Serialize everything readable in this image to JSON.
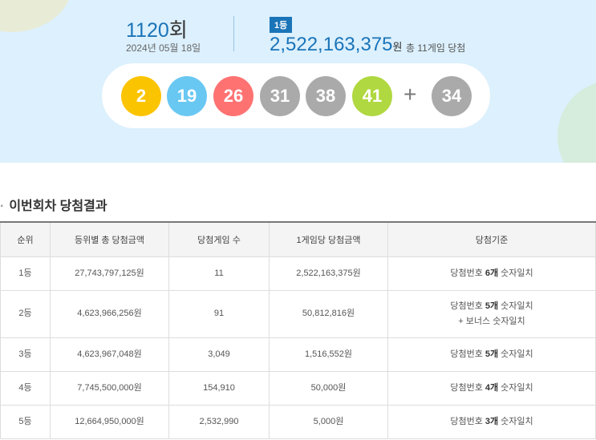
{
  "draw": {
    "round": "1120",
    "round_suffix": "회",
    "date": "2024년 05월 18일",
    "badge": "1등",
    "first_prize": "2,522,163,375",
    "won": "원",
    "winners_text": "총 11게임 당첨"
  },
  "balls": [
    {
      "n": "2",
      "color": "#fbc400"
    },
    {
      "n": "19",
      "color": "#69c8f2"
    },
    {
      "n": "26",
      "color": "#ff7272"
    },
    {
      "n": "31",
      "color": "#aaaaaa"
    },
    {
      "n": "38",
      "color": "#aaaaaa"
    },
    {
      "n": "41",
      "color": "#b0d840"
    }
  ],
  "plus": "+",
  "bonus": {
    "n": "34",
    "color": "#aaaaaa"
  },
  "section_title": "이번회차 당첨결과",
  "table": {
    "headers": [
      "순위",
      "등위별 총 당첨금액",
      "당첨게임 수",
      "1게임당 당첨금액",
      "당첨기준"
    ],
    "rows": [
      {
        "rank": "1등",
        "total": "27,743,797,125원",
        "count": "11",
        "each": "2,522,163,375원",
        "crit_pre": "당첨번호 ",
        "crit_bold": "6개",
        "crit_post": " 숫자일치",
        "crit_extra": ""
      },
      {
        "rank": "2등",
        "total": "4,623,966,256원",
        "count": "91",
        "each": "50,812,816원",
        "crit_pre": "당첨번호 ",
        "crit_bold": "5개",
        "crit_post": " 숫자일치",
        "crit_extra": "+ 보너스 숫자일치"
      },
      {
        "rank": "3등",
        "total": "4,623,967,048원",
        "count": "3,049",
        "each": "1,516,552원",
        "crit_pre": "당첨번호 ",
        "crit_bold": "5개",
        "crit_post": " 숫자일치",
        "crit_extra": ""
      },
      {
        "rank": "4등",
        "total": "7,745,500,000원",
        "count": "154,910",
        "each": "50,000원",
        "crit_pre": "당첨번호 ",
        "crit_bold": "4개",
        "crit_post": " 숫자일치",
        "crit_extra": ""
      },
      {
        "rank": "5등",
        "total": "12,664,950,000원",
        "count": "2,532,990",
        "each": "5,000원",
        "crit_pre": "당첨번호 ",
        "crit_bold": "3개",
        "crit_post": " 숫자일치",
        "crit_extra": ""
      }
    ]
  }
}
